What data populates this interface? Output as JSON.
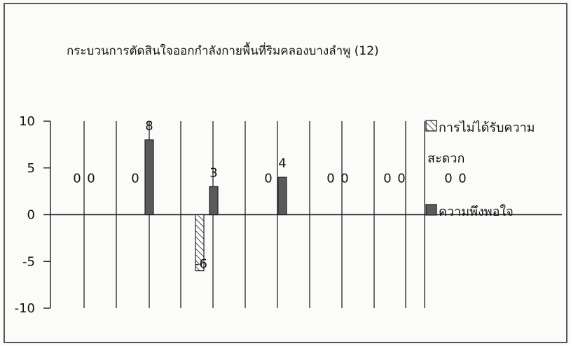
{
  "chart_data": {
    "type": "bar",
    "title": "กระบวนการตัดสินใจออกกำลังกายพื้นที่ริมคลองบางลำพู (12)",
    "xlabel": "",
    "ylabel": "",
    "ylim": [
      -10,
      10
    ],
    "yticks": [
      "10",
      "5",
      "0",
      "-5",
      "-10"
    ],
    "grid": "vertical",
    "legend_position": "right",
    "categories": [
      "",
      "",
      "",
      "",
      "",
      "",
      ""
    ],
    "series": [
      {
        "name": "การไม่ได้รับความสะดวก",
        "legend_lines": [
          "การไม่ได้รับความ",
          "สะดวก"
        ],
        "pattern": "hatched",
        "color": "#ffffff",
        "values": [
          0,
          0,
          -6,
          0,
          0,
          0,
          0
        ],
        "labels": [
          "0",
          "0",
          "-6",
          "0",
          "0",
          "0",
          "0"
        ]
      },
      {
        "name": "ความพึงพอใจ",
        "legend_lines": [
          "ความพึงพอใจ"
        ],
        "pattern": "solid",
        "color": "#5a5a5a",
        "values": [
          0,
          8,
          3,
          4,
          0,
          0,
          0
        ],
        "labels": [
          "0",
          "8",
          "3",
          "4",
          "0",
          "0",
          "0"
        ]
      }
    ]
  }
}
